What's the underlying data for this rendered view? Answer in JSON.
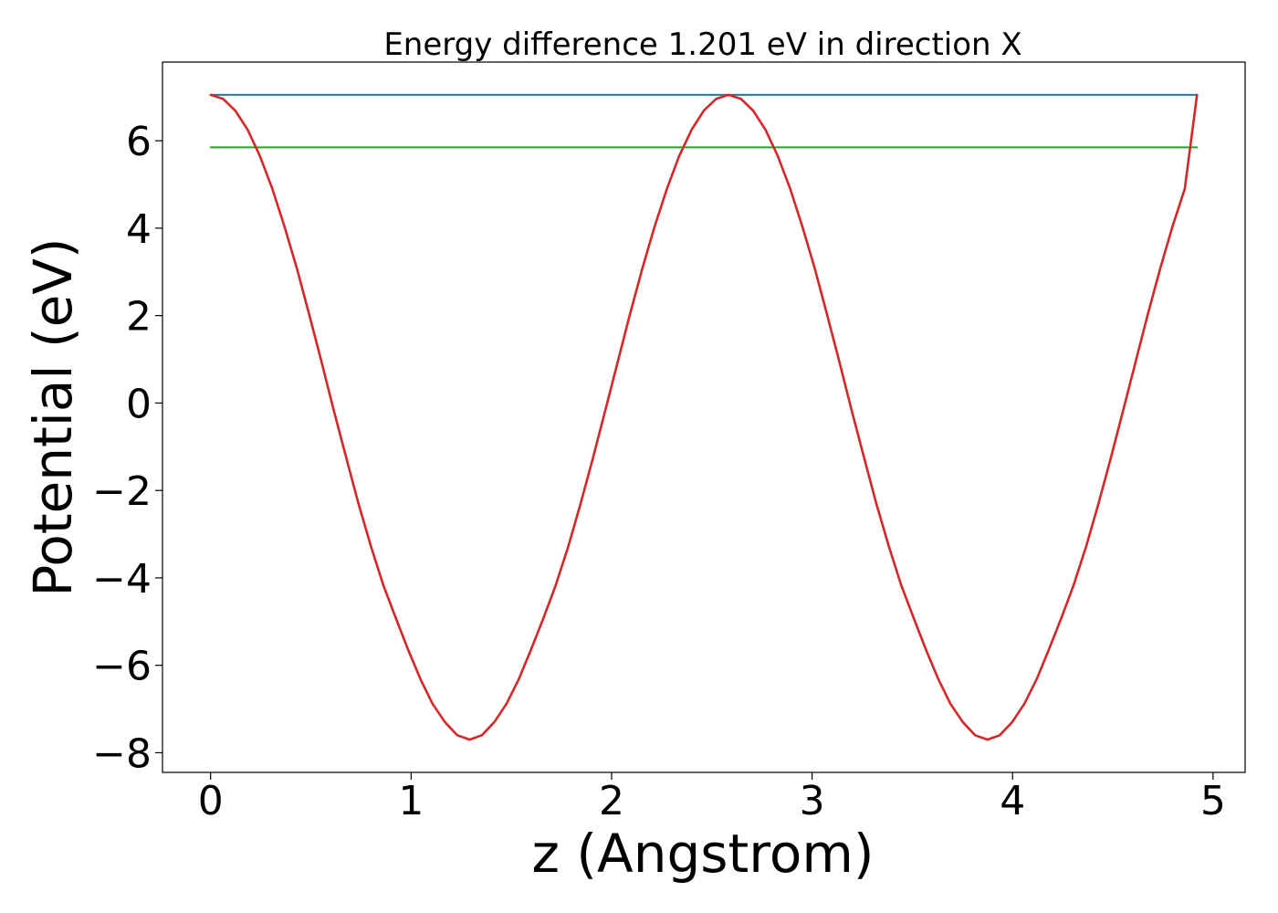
{
  "chart_data": {
    "type": "line",
    "title": "Energy difference 1.201 eV in direction X",
    "xlabel": "z (Angstrom)",
    "ylabel": "Potential (eV)",
    "xlim": [
      -0.24,
      5.16
    ],
    "ylim": [
      -8.45,
      7.8
    ],
    "x_ticks": [
      0,
      1,
      2,
      3,
      4,
      5
    ],
    "y_ticks": [
      -8,
      -6,
      -4,
      -2,
      0,
      2,
      4,
      6
    ],
    "x_tick_labels": [
      "0",
      "1",
      "2",
      "3",
      "4",
      "5"
    ],
    "y_tick_labels": [
      "−8",
      "−6",
      "−4",
      "−2",
      "0",
      "2",
      "4",
      "6"
    ],
    "grid": false,
    "series": [
      {
        "color": "#1f77b4",
        "x": [
          0,
          4.92
        ],
        "y": [
          7.05,
          7.05
        ]
      },
      {
        "color": "#2ca02c",
        "x": [
          0,
          4.92
        ],
        "y": [
          5.85,
          5.85
        ]
      },
      {
        "color": "#d62728",
        "x": [
          0.0,
          0.062,
          0.123,
          0.185,
          0.246,
          0.308,
          0.369,
          0.431,
          0.492,
          0.554,
          0.615,
          0.677,
          0.738,
          0.8,
          0.861,
          0.923,
          0.984,
          1.046,
          1.107,
          1.169,
          1.23,
          1.292,
          1.353,
          1.415,
          1.476,
          1.538,
          1.599,
          1.661,
          1.722,
          1.784,
          1.845,
          1.907,
          1.968,
          2.03,
          2.091,
          2.153,
          2.214,
          2.276,
          2.337,
          2.399,
          2.46,
          2.522,
          2.583,
          2.645,
          2.706,
          2.768,
          2.829,
          2.891,
          2.952,
          3.014,
          3.075,
          3.137,
          3.198,
          3.26,
          3.321,
          3.383,
          3.444,
          3.506,
          3.567,
          3.629,
          3.69,
          3.752,
          3.813,
          3.875,
          3.936,
          3.998,
          4.059,
          4.121,
          4.182,
          4.244,
          4.305,
          4.367,
          4.428,
          4.49,
          4.551,
          4.613,
          4.674,
          4.736,
          4.797,
          4.859,
          4.92
        ],
        "y": [
          7.05,
          6.96,
          6.69,
          6.25,
          5.65,
          4.9,
          4.03,
          3.07,
          2.02,
          0.93,
          -0.18,
          -1.26,
          -2.31,
          -3.28,
          -4.16,
          -4.91,
          -5.63,
          -6.31,
          -6.88,
          -7.3,
          -7.6,
          -7.7,
          -7.6,
          -7.3,
          -6.88,
          -6.31,
          -5.63,
          -4.91,
          -4.16,
          -3.28,
          -2.31,
          -1.26,
          -0.18,
          0.93,
          2.02,
          3.07,
          4.03,
          4.9,
          5.65,
          6.25,
          6.69,
          6.96,
          7.05,
          6.96,
          6.69,
          6.25,
          5.65,
          4.9,
          4.03,
          3.07,
          2.02,
          0.93,
          -0.18,
          -1.26,
          -2.31,
          -3.28,
          -4.16,
          -4.91,
          -5.63,
          -6.31,
          -6.88,
          -7.3,
          -7.6,
          -7.7,
          -7.6,
          -7.3,
          -6.88,
          -6.31,
          -5.63,
          -4.91,
          -4.16,
          -3.28,
          -2.31,
          -1.26,
          -0.18,
          0.93,
          2.02,
          3.07,
          4.03,
          4.9,
          7.05
        ]
      }
    ]
  }
}
